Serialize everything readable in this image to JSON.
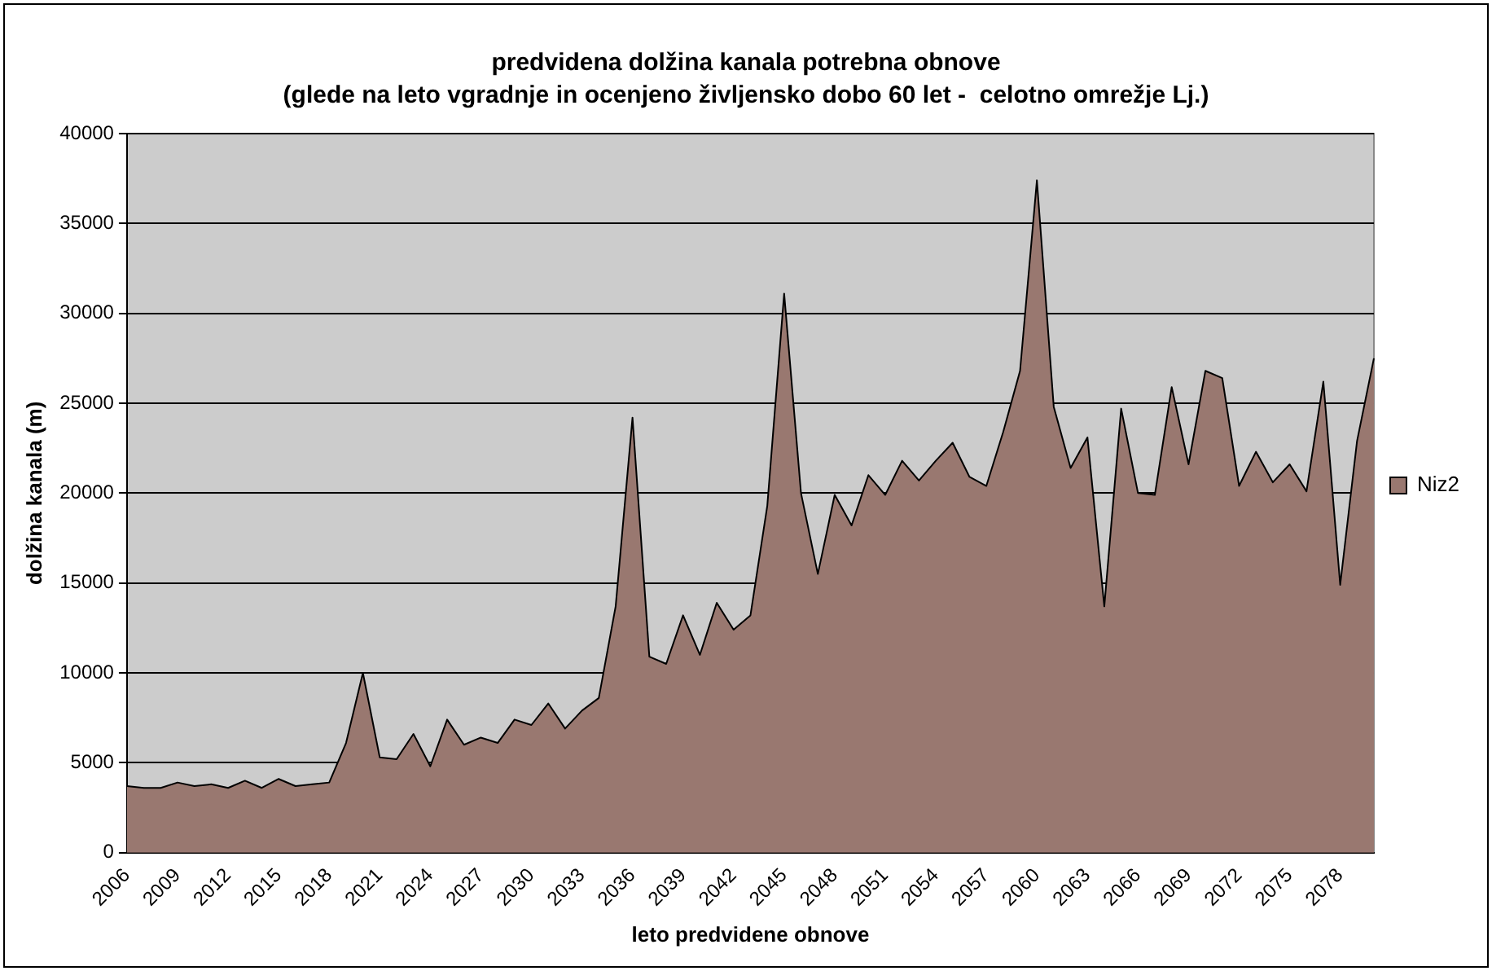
{
  "chart_data": {
    "type": "area",
    "title": "predvidena dolžina kanala potrebna obnove",
    "subtitle": "(glede na leto vgradnje in ocenjeno življensko dobo 60 let -  celotno omrežje Lj.)",
    "xlabel": "leto predvidene obnove",
    "ylabel": "dolžina kanala (m)",
    "categories": [
      "2006",
      null,
      null,
      "2009",
      null,
      null,
      "2012",
      null,
      null,
      "2015",
      null,
      null,
      "2018",
      null,
      null,
      "2021",
      null,
      null,
      "2024",
      null,
      null,
      "2027",
      null,
      null,
      "2030",
      null,
      null,
      "2033",
      null,
      null,
      "2036",
      null,
      null,
      "2039",
      null,
      null,
      "2042",
      null,
      null,
      "2045",
      null,
      null,
      "2048",
      null,
      null,
      "2051",
      null,
      null,
      "2054",
      null,
      null,
      "2057",
      null,
      null,
      "2060",
      null,
      null,
      "2063",
      null,
      null,
      "2066",
      null,
      null,
      "2069",
      null,
      null,
      "2072",
      null,
      null,
      "2075",
      null,
      null,
      "2078",
      null,
      null
    ],
    "series": [
      {
        "name": "Niz2",
        "color": "#997870",
        "values": [
          3700,
          3600,
          3600,
          3900,
          3700,
          3800,
          3600,
          4000,
          3600,
          4100,
          3700,
          3800,
          3900,
          6100,
          10000,
          5300,
          5200,
          6600,
          4800,
          7400,
          6000,
          6400,
          6100,
          7400,
          7100,
          8300,
          6900,
          7900,
          8600,
          13700,
          24200,
          10900,
          10500,
          13200,
          11000,
          13900,
          12400,
          13200,
          19300,
          31100,
          20000,
          15500,
          19900,
          18200,
          21000,
          19900,
          21800,
          20700,
          21800,
          22800,
          20900,
          20400,
          23400,
          26800,
          37400,
          24800,
          21400,
          23100,
          13700,
          24700,
          20000,
          19900,
          25900,
          21600,
          26800,
          26400,
          20400,
          22300,
          20600,
          21600,
          20100,
          26200,
          14900,
          22900,
          27500
        ]
      }
    ],
    "ylim": [
      0,
      40000
    ],
    "yticks": [
      0,
      5000,
      10000,
      15000,
      20000,
      25000,
      30000,
      35000,
      40000
    ],
    "grid": "y",
    "legend": "right",
    "marker": "none",
    "line_style": "solid"
  }
}
